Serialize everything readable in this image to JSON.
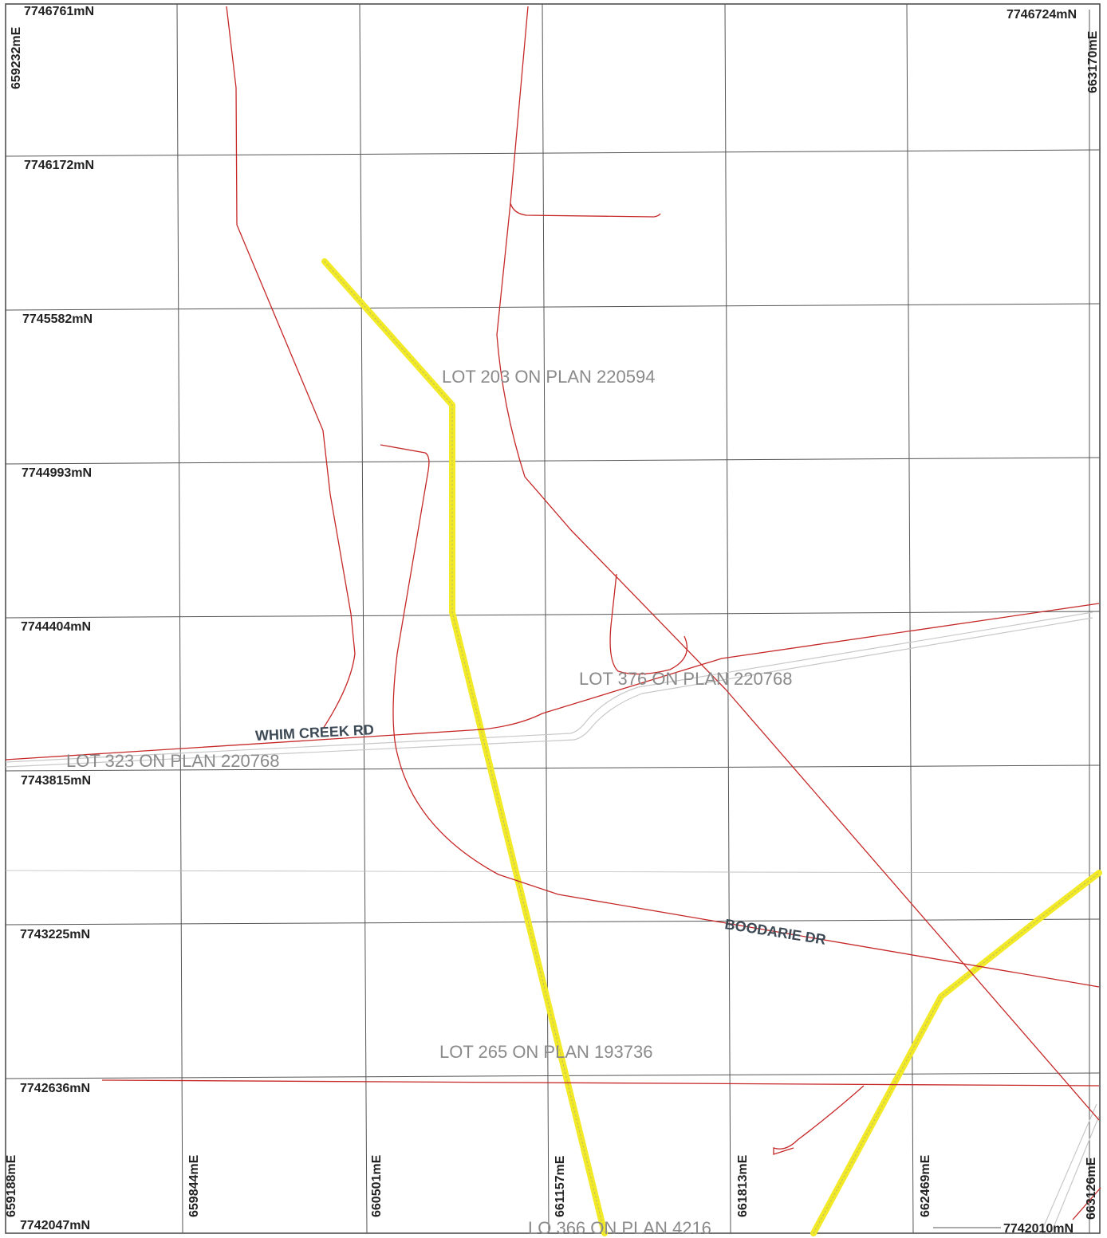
{
  "northings": {
    "top_left": "7746761mN",
    "top_right": "7746724mN",
    "row_1": "7746172mN",
    "row_2": "7745582mN",
    "row_3": "7744993mN",
    "row_4": "7744404mN",
    "row_5": "7743815mN",
    "row_6": "7743225mN",
    "row_7": "7742636mN",
    "bottom_left": "7742047mN",
    "bottom_right": "7742010mN"
  },
  "eastings": {
    "top_left": "659232mE",
    "top_right": "663170mE",
    "col_1": "659188mE",
    "col_2": "659844mE",
    "col_3": "660501mE",
    "col_4": "661157mE",
    "col_5": "661813mE",
    "col_6": "662469mE",
    "col_7": "663126mE"
  },
  "lots": {
    "lot_203": "LOT 203 ON PLAN 220594",
    "lot_376": "LOT 376 ON PLAN 220768",
    "lot_323": "LOT 323 ON PLAN 220768",
    "lot_265": "LOT 265 ON PLAN 193736",
    "lot_366": "LO   366 ON PLAN 4216"
  },
  "roads": {
    "whim_creek": "WHIM CREEK RD",
    "boodarie": "BOODARIE DR"
  },
  "colors": {
    "grid": "#555555",
    "cadastre": "#c62828",
    "highlight": "#f2ea26",
    "road_casing": "#c8c8c8",
    "lot_text": "#8a8a8a"
  }
}
